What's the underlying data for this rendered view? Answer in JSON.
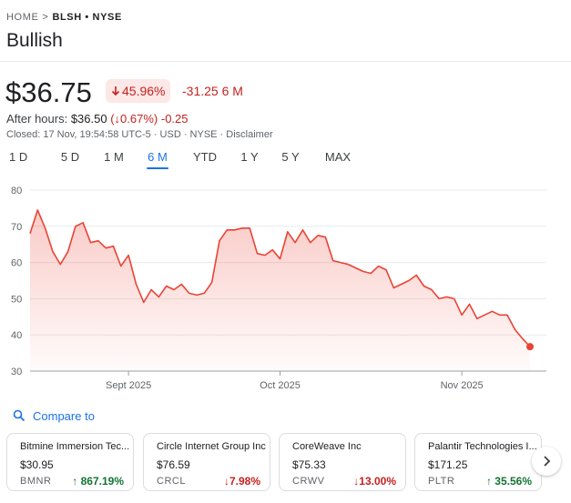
{
  "breadcrumb": {
    "home": "HOME",
    "separator": ">",
    "ticker": "BLSH • NYSE"
  },
  "title": "Bullish",
  "quote": {
    "price": "$36.75",
    "change_pct": "45.96%",
    "change_abs": "-31.25 6 M",
    "after_hours_label": "After hours:",
    "after_hours_price": "$36.50",
    "after_hours_pct": "(↓0.67%)",
    "after_hours_abs": "-0.25",
    "closed_line": "Closed: 17 Nov, 19:54:58 UTC-5 · USD · NYSE · Disclaimer"
  },
  "range_tabs": [
    {
      "label": "1 D"
    },
    {
      "label": "5 D"
    },
    {
      "label": "1 M"
    },
    {
      "label": "6 M",
      "active": true
    },
    {
      "label": "YTD"
    },
    {
      "label": "1 Y"
    },
    {
      "label": "5 Y"
    },
    {
      "label": "MAX"
    }
  ],
  "colors": {
    "negative": "#c5221f",
    "positive": "#137333",
    "accent": "#1a73e8",
    "line": "#ea4335"
  },
  "chart_data": {
    "type": "area",
    "ylim": [
      30,
      80
    ],
    "yticks": [
      30,
      40,
      50,
      60,
      70,
      80
    ],
    "xtick_labels": [
      "Sept 2025",
      "Oct 2025",
      "Nov 2025"
    ],
    "xtick_index": [
      13,
      33,
      57
    ],
    "grid": true,
    "values": [
      68,
      74.5,
      69.5,
      63,
      59.5,
      63,
      70,
      71,
      65.5,
      66,
      64,
      64.5,
      59,
      62,
      54,
      49,
      52.5,
      50.5,
      53.5,
      52.5,
      54,
      51.5,
      51,
      51.5,
      54.5,
      66,
      69,
      69,
      69.5,
      69.5,
      62.5,
      62,
      63.5,
      61,
      68.5,
      65.5,
      69,
      65.5,
      67.5,
      67,
      60.5,
      60,
      59.5,
      58.5,
      57.5,
      57,
      59,
      58,
      53,
      54,
      55,
      56.5,
      53.5,
      52.5,
      50,
      50.5,
      50,
      45.5,
      48.5,
      44.5,
      45.5,
      46.5,
      45.5,
      45.5,
      41.5,
      39,
      36.75
    ]
  },
  "compare": {
    "label": "Compare to"
  },
  "cards": [
    {
      "name": "Bitmine Immersion Tec...",
      "price": "$30.95",
      "symbol": "BMNR",
      "delta": "867.19%",
      "direction": "up"
    },
    {
      "name": "Circle Internet Group Inc",
      "price": "$76.59",
      "symbol": "CRCL",
      "delta": "7.98%",
      "direction": "down"
    },
    {
      "name": "CoreWeave Inc",
      "price": "$75.33",
      "symbol": "CRWV",
      "delta": "13.00%",
      "direction": "down"
    },
    {
      "name": "Palantir Technologies I...",
      "price": "$171.25",
      "symbol": "PLTR",
      "delta": "35.56%",
      "direction": "up"
    }
  ]
}
